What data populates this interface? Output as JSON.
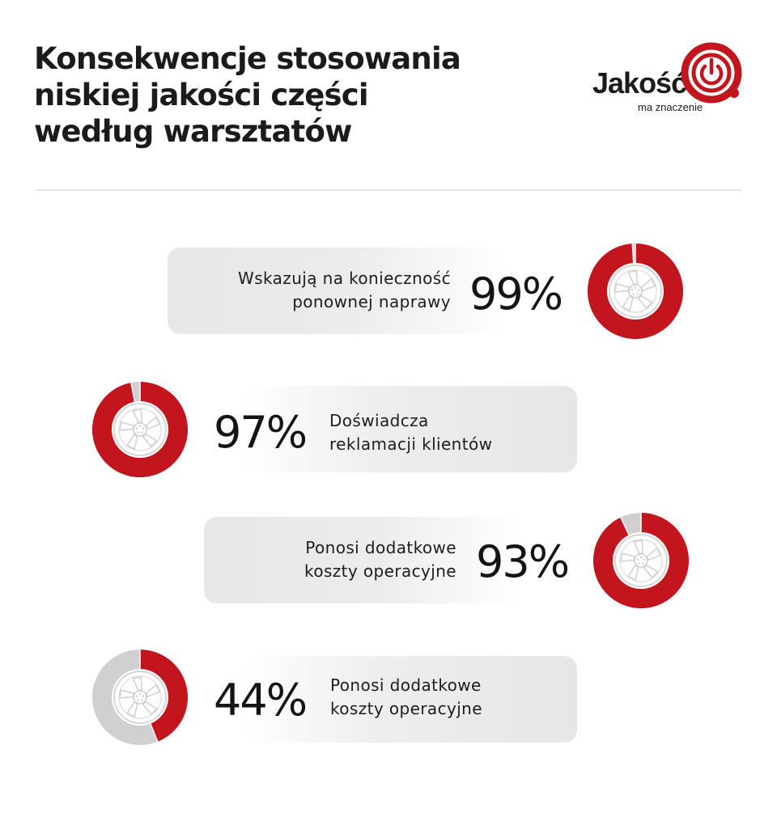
{
  "title_lines": [
    "Konsekwencje stosowania",
    "niskiej jakości części",
    "według warsztatów"
  ],
  "logo": {
    "word": "Jakość",
    "tagline": "ma znaczenie"
  },
  "colors": {
    "accent": "#c2151e",
    "remainder": "#d0d0d0",
    "text": "#1d1d1d"
  },
  "chart_data": {
    "type": "pie",
    "title": "Konsekwencje stosowania niskiej jakości części według warsztatów",
    "items": [
      {
        "label_lines": [
          "Wskazują na konieczność",
          "ponownej naprawy"
        ],
        "value": 99,
        "value_label": "99%"
      },
      {
        "label_lines": [
          "Doświadcza",
          "reklamacji klientów"
        ],
        "value": 97,
        "value_label": "97%"
      },
      {
        "label_lines": [
          "Ponosi dodatkowe",
          "koszty operacyjne"
        ],
        "value": 93,
        "value_label": "93%"
      },
      {
        "label_lines": [
          "Ponosi dodatkowe",
          "koszty operacyjne"
        ],
        "value": 44,
        "value_label": "44%"
      }
    ]
  }
}
